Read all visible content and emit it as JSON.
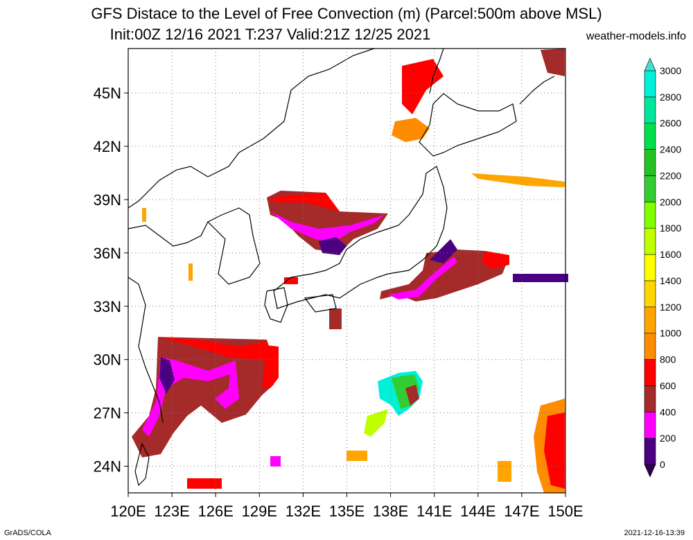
{
  "header": {
    "title_line1": "GFS Distace to the Level of Free Convection (m) (Parcel:500m above MSL)",
    "title_line2": "Init:00Z 12/16 2021 T:237 Valid:21Z 12/25 2021",
    "site": "weather-models.info"
  },
  "footer": {
    "left": "GrADS/COLA",
    "right": "2021-12-16-13:39"
  },
  "map": {
    "lon_range": [
      120,
      150
    ],
    "lat_range": [
      22.5,
      47.5
    ],
    "lon_ticks": [
      120,
      123,
      126,
      129,
      132,
      135,
      138,
      141,
      144,
      147,
      150
    ],
    "lon_labels": [
      "120E",
      "123E",
      "126E",
      "129E",
      "132E",
      "135E",
      "138E",
      "141E",
      "144E",
      "147E",
      "150E"
    ],
    "lat_ticks": [
      24,
      27,
      30,
      33,
      36,
      39,
      42,
      45
    ],
    "lat_labels": [
      "24N",
      "27N",
      "30N",
      "33N",
      "36N",
      "39N",
      "42N",
      "45N"
    ],
    "grid": true
  },
  "colorbar": {
    "levels": [
      "0",
      "200",
      "400",
      "600",
      "800",
      "1000",
      "1200",
      "1400",
      "1600",
      "1800",
      "2000",
      "2200",
      "2400",
      "2600",
      "2800",
      "3000"
    ],
    "colors": [
      "#4b0082",
      "#ff00ff",
      "#a52a2a",
      "#ff0000",
      "#ff8c00",
      "#ffa500",
      "#ffd700",
      "#ffff00",
      "#bfff00",
      "#7fff00",
      "#32cd32",
      "#22c322",
      "#00e04a",
      "#00e69a",
      "#00f0d8",
      "#40e0d0"
    ]
  }
}
